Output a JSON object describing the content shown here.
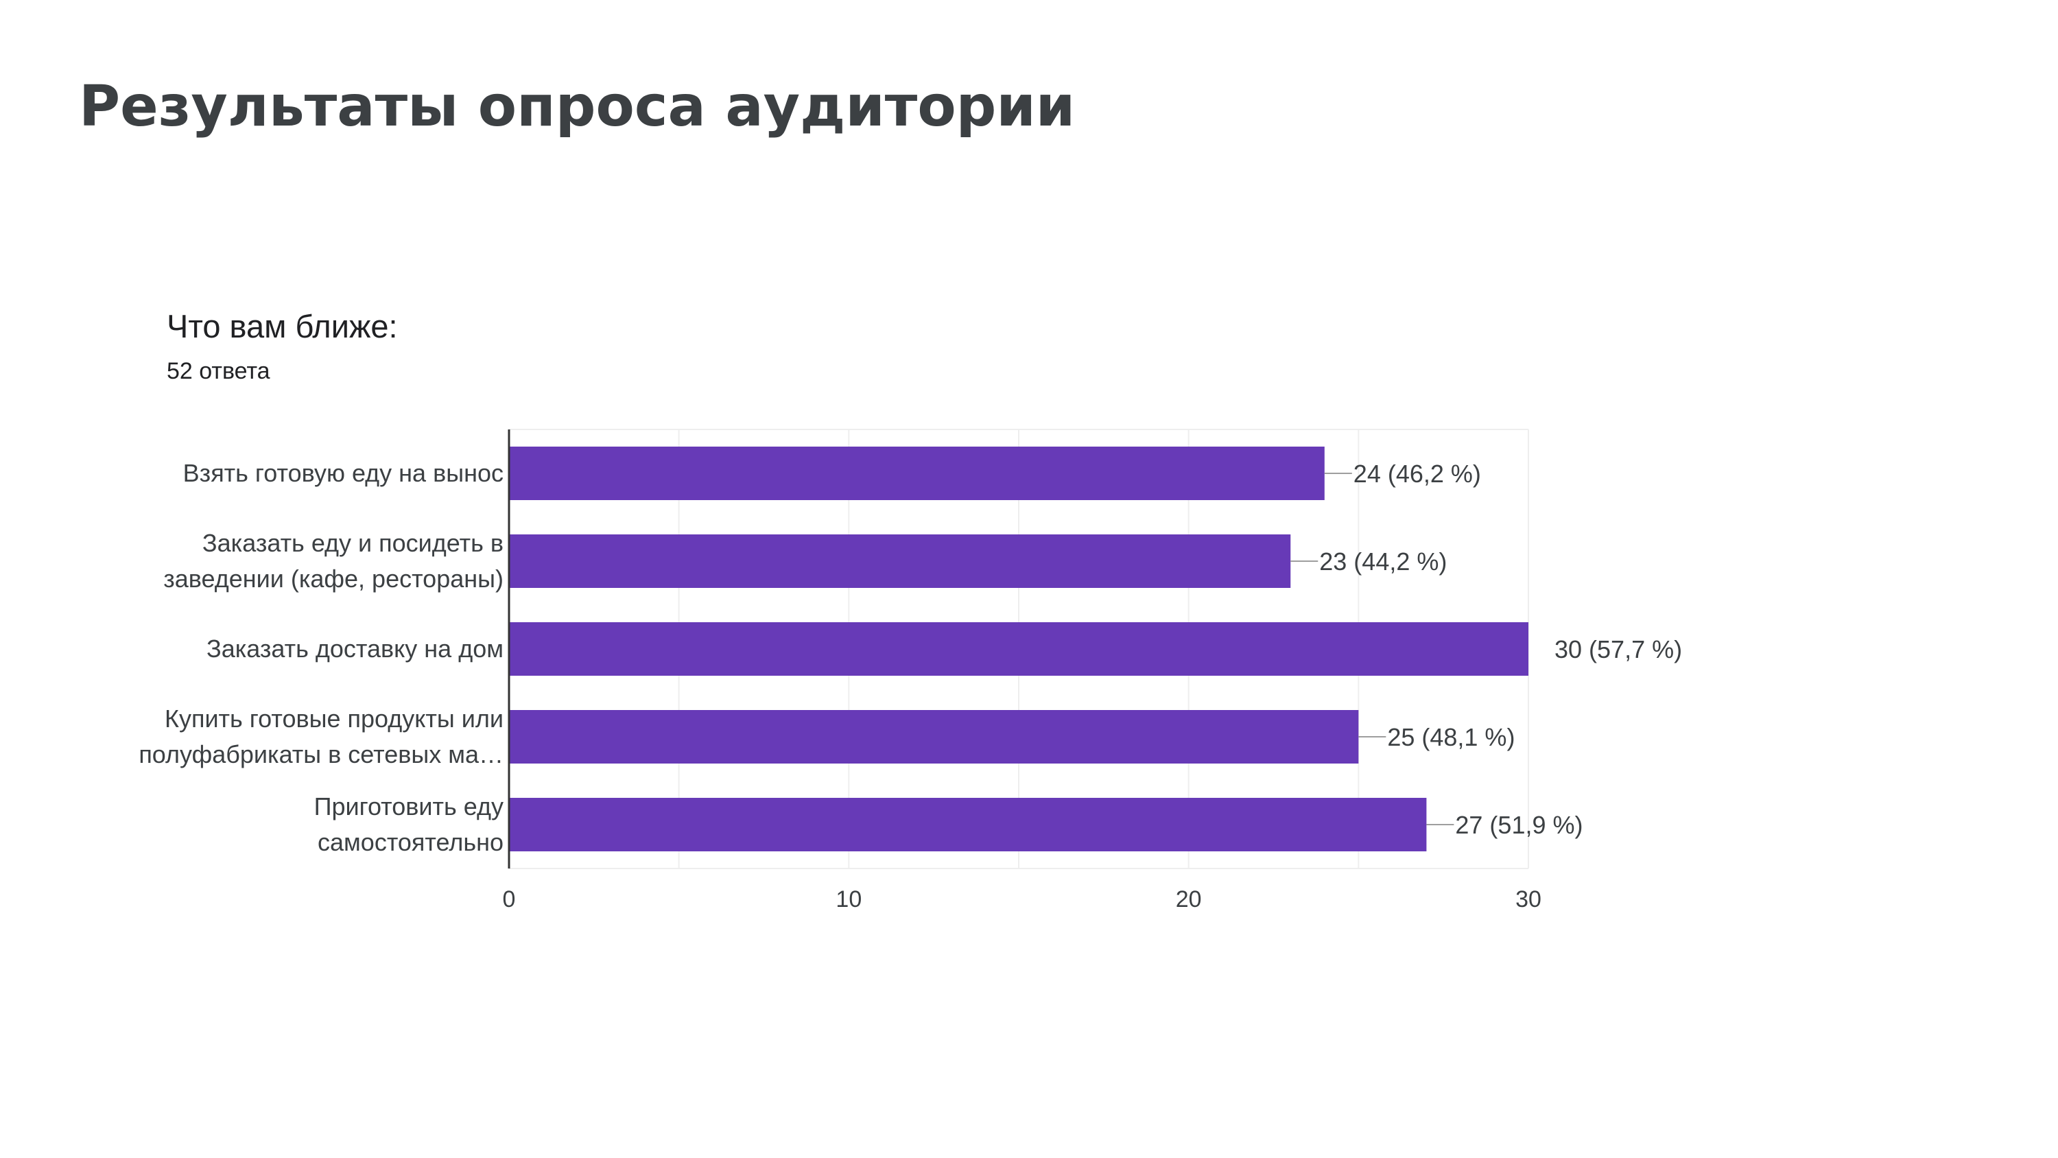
{
  "slide": {
    "title": "Результаты опроса аудитории"
  },
  "question": {
    "text": "Что вам ближе:",
    "responses": "52 ответа"
  },
  "colors": {
    "bar": "#673ab7",
    "grid": "#eeeeee",
    "axis": "#333333",
    "text": "#3c4043"
  },
  "chart_data": {
    "type": "bar",
    "orientation": "horizontal",
    "categories": [
      [
        "Взять готовую еду на вынос"
      ],
      [
        "Заказать еду и посидеть в",
        "заведении (кафе, рестораны)"
      ],
      [
        "Заказать доставку на дом"
      ],
      [
        "Купить готовые продукты или",
        "полуфабрикаты в сетевых ма…"
      ],
      [
        "Приготовить еду",
        "самостоятельно"
      ]
    ],
    "values": [
      24,
      23,
      30,
      25,
      27
    ],
    "data_labels": [
      "24 (46,2 %)",
      "23 (44,2 %)",
      "30 (57,7 %)",
      "25 (48,1 %)",
      "27 (51,9 %)"
    ],
    "xlim": [
      0,
      30
    ],
    "x_ticks": [
      0,
      10,
      20,
      30
    ],
    "grid": true,
    "legend": "none"
  }
}
